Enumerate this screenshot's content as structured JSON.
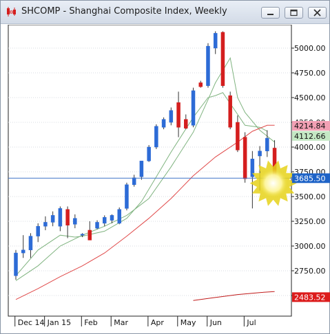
{
  "window": {
    "title": "SHCOMP - Shanghai Composite Index, Weekly",
    "app_icon": "candlestick-chart-icon",
    "controls": [
      {
        "name": "minimize-button",
        "icon": "minimize-icon"
      },
      {
        "name": "restore-button",
        "icon": "restore-icon"
      },
      {
        "name": "close-button",
        "icon": "close-icon"
      }
    ]
  },
  "chart_data": {
    "type": "candlestick",
    "title": "SHCOMP - Shanghai Composite Index, Weekly",
    "ylim": [
      2400,
      5250
    ],
    "y_ticks": [
      "5000.00",
      "4750.00",
      "4500.00",
      "4250.00",
      "4000.00",
      "3750.00",
      "3500.00",
      "3250.00",
      "3000.00",
      "2750.00",
      "2500.00"
    ],
    "y_tick_values": [
      5000,
      4750,
      4500,
      4250,
      4000,
      3750,
      3500,
      3250,
      3000,
      2750,
      2500
    ],
    "x_labels": [
      {
        "label": "Dec 14",
        "candle": 1
      },
      {
        "label": "Jan 15",
        "candle": 5
      },
      {
        "label": "Feb",
        "candle": 10
      },
      {
        "label": "Mar",
        "candle": 14
      },
      {
        "label": "Apr",
        "candle": 19
      },
      {
        "label": "May",
        "candle": 23
      },
      {
        "label": "Jun",
        "candle": 27
      },
      {
        "label": "Jul",
        "candle": 32
      }
    ],
    "candles": [
      {
        "open": 2700,
        "high": 2960,
        "low": 2660,
        "close": 2930
      },
      {
        "open": 2930,
        "high": 3110,
        "low": 2880,
        "close": 2960
      },
      {
        "open": 2960,
        "high": 3130,
        "low": 2880,
        "close": 3100
      },
      {
        "open": 3100,
        "high": 3230,
        "low": 3040,
        "close": 3200
      },
      {
        "open": 3200,
        "high": 3300,
        "low": 3160,
        "close": 3240
      },
      {
        "open": 3240,
        "high": 3350,
        "low": 3200,
        "close": 3310
      },
      {
        "open": 3200,
        "high": 3400,
        "low": 3150,
        "close": 3380
      },
      {
        "open": 3370,
        "high": 3400,
        "low": 3080,
        "close": 3210
      },
      {
        "open": 3220,
        "high": 3320,
        "low": 3180,
        "close": 3280
      },
      {
        "open": 3120,
        "high": 3130,
        "low": 3090,
        "close": 3120
      },
      {
        "open": 3160,
        "high": 3250,
        "low": 3060,
        "close": 3060
      },
      {
        "open": 3180,
        "high": 3260,
        "low": 3170,
        "close": 3240
      },
      {
        "open": 3230,
        "high": 3310,
        "low": 3200,
        "close": 3290
      },
      {
        "open": 3260,
        "high": 3320,
        "low": 3230,
        "close": 3310
      },
      {
        "open": 3230,
        "high": 3390,
        "low": 3220,
        "close": 3370
      },
      {
        "open": 3380,
        "high": 3640,
        "low": 3360,
        "close": 3620
      },
      {
        "open": 3620,
        "high": 3720,
        "low": 3600,
        "close": 3690
      },
      {
        "open": 3700,
        "high": 3860,
        "low": 3670,
        "close": 3860
      },
      {
        "open": 3860,
        "high": 4020,
        "low": 3850,
        "close": 4000
      },
      {
        "open": 4000,
        "high": 4230,
        "low": 3980,
        "close": 4210
      },
      {
        "open": 4200,
        "high": 4300,
        "low": 4180,
        "close": 4280
      },
      {
        "open": 4250,
        "high": 4400,
        "low": 4220,
        "close": 4370
      },
      {
        "open": 4450,
        "high": 4560,
        "low": 4100,
        "close": 4200
      },
      {
        "open": 4280,
        "high": 4330,
        "low": 4180,
        "close": 4190
      },
      {
        "open": 4220,
        "high": 4600,
        "low": 4200,
        "close": 4570
      },
      {
        "open": 4650,
        "high": 4670,
        "low": 4600,
        "close": 4610
      },
      {
        "open": 4620,
        "high": 5050,
        "low": 4600,
        "close": 5020
      },
      {
        "open": 5000,
        "high": 5170,
        "low": 4940,
        "close": 5150
      },
      {
        "open": 5160,
        "high": 5170,
        "low": 4600,
        "close": 4620
      },
      {
        "open": 4520,
        "high": 4560,
        "low": 4180,
        "close": 4200
      },
      {
        "open": 4250,
        "high": 4320,
        "low": 3950,
        "close": 3970
      },
      {
        "open": 4100,
        "high": 4150,
        "low": 3640,
        "close": 3680
      },
      {
        "open": 3700,
        "high": 3960,
        "low": 3380,
        "close": 3880
      },
      {
        "open": 3910,
        "high": 4010,
        "low": 3560,
        "close": 3960
      },
      {
        "open": 3960,
        "high": 4170,
        "low": 3900,
        "close": 4090
      },
      {
        "open": 3990,
        "high": 4070,
        "low": 3680,
        "close": 3690
      }
    ],
    "moving_averages": [
      {
        "color": "#7fb37f",
        "points": [
          [
            0,
            2650
          ],
          [
            3,
            2800
          ],
          [
            6,
            3000
          ],
          [
            9,
            3110
          ],
          [
            12,
            3200
          ],
          [
            15,
            3310
          ],
          [
            18,
            3480
          ],
          [
            21,
            3800
          ],
          [
            24,
            4150
          ],
          [
            26,
            4480
          ],
          [
            27,
            4650
          ],
          [
            29,
            4900
          ],
          [
            30,
            4500
          ],
          [
            31,
            4350
          ],
          [
            33,
            4170
          ],
          [
            35,
            4050
          ]
        ]
      },
      {
        "color": "#7fb37f",
        "points": [
          [
            0,
            2700
          ],
          [
            3,
            2960
          ],
          [
            6,
            3110
          ],
          [
            8,
            3090
          ],
          [
            9,
            3100
          ],
          [
            12,
            3150
          ],
          [
            15,
            3280
          ],
          [
            17,
            3450
          ],
          [
            19,
            3700
          ],
          [
            21,
            3950
          ],
          [
            24,
            4300
          ],
          [
            26,
            4500
          ],
          [
            27,
            4520
          ],
          [
            28,
            4550
          ],
          [
            29,
            4440
          ],
          [
            31,
            4220
          ],
          [
            33,
            4200
          ],
          [
            34,
            4160
          ]
        ]
      },
      {
        "color": "#e04848",
        "points": [
          [
            0,
            2460
          ],
          [
            3,
            2570
          ],
          [
            6,
            2690
          ],
          [
            9,
            2800
          ],
          [
            12,
            2930
          ],
          [
            15,
            3100
          ],
          [
            18,
            3280
          ],
          [
            21,
            3480
          ],
          [
            24,
            3710
          ],
          [
            27,
            3900
          ],
          [
            30,
            4050
          ],
          [
            32,
            4160
          ],
          [
            34,
            4220
          ],
          [
            35,
            4220
          ]
        ]
      },
      {
        "color": "#c01818",
        "points": [
          [
            24,
            2450
          ],
          [
            26,
            2470
          ],
          [
            30,
            2510
          ],
          [
            33,
            2530
          ],
          [
            35,
            2540
          ]
        ]
      }
    ],
    "horizontal_line": 3685.5,
    "price_labels": [
      {
        "text": "4214.84",
        "value": 4214.84,
        "bg": "#f2a0b4"
      },
      {
        "text": "4112.66",
        "value": 4112.66,
        "bg": "#c4e8c4"
      },
      {
        "text": "3685.50",
        "value": 3685.5,
        "bg": "#1e63c7"
      },
      {
        "text": "2483.52",
        "value": 2483.52,
        "bg": "#dc1c1c"
      }
    ],
    "colors": {
      "up": "#2d6bd6",
      "down": "#d41e1e",
      "hline": "#3f73c8",
      "grid": "#d7dbe2"
    }
  }
}
